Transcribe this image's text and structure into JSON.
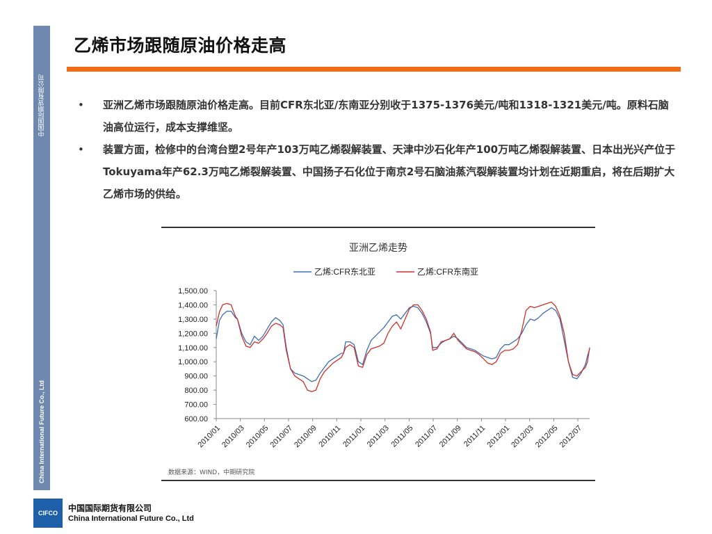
{
  "sidebar": {
    "top_text": "中国国际期货有限公司",
    "bottom_text": "China International Future Co., Ltd"
  },
  "page": {
    "title": "乙烯市场跟随原油价格走高"
  },
  "bullets": [
    {
      "marker": "•",
      "text": "亚洲乙烯市场跟随原油价格走高。目前CFR东北亚/东南亚分别收于1375-1376美元/吨和1318-1321美元/吨。原料石脑油高位运行，成本支撑维坚。"
    },
    {
      "marker": "•",
      "text": "装置方面，检修中的台湾台塑2号年产103万吨乙烯裂解装置、天津中沙石化年产100万吨乙烯裂解装置、日本出光兴产位于Tokuyama年产62.3万吨乙烯裂解装置、中国扬子石化位于南京2号石脑油蒸汽裂解装置均计划在近期重启，将在后期扩大乙烯市场的供给。"
    }
  ],
  "chart_data": {
    "type": "line",
    "title": "亚洲乙烯走势",
    "source": "数据来源：WIND，中期研究院",
    "legend_position": "top",
    "xlabel": "",
    "ylabel": "",
    "ylim": [
      600,
      1500
    ],
    "y_ticks": [
      "1,500.00",
      "1,400.00",
      "1,300.00",
      "1,200.00",
      "1,100.00",
      "1,000.00",
      "900.00",
      "800.00",
      "700.00",
      "600.00"
    ],
    "x_ticks": [
      "2010/01",
      "2010/03",
      "2010/05",
      "2010/07",
      "2010/09",
      "2010/11",
      "2011/01",
      "2011/03",
      "2011/05",
      "2011/07",
      "2011/09",
      "2011/11",
      "2012/01",
      "2012/03",
      "2012/05",
      "2012/07"
    ],
    "x_range_months": [
      0,
      15.4
    ],
    "series": [
      {
        "name": "乙烯:CFR东北亚",
        "color": "#3d6fb6",
        "points": [
          [
            0,
            1160
          ],
          [
            0.15,
            1290
          ],
          [
            0.3,
            1330
          ],
          [
            0.5,
            1355
          ],
          [
            0.7,
            1355
          ],
          [
            0.9,
            1310
          ],
          [
            1.0,
            1300
          ],
          [
            1.2,
            1200
          ],
          [
            1.4,
            1140
          ],
          [
            1.6,
            1120
          ],
          [
            1.8,
            1180
          ],
          [
            2.0,
            1150
          ],
          [
            2.2,
            1180
          ],
          [
            2.4,
            1230
          ],
          [
            2.6,
            1280
          ],
          [
            2.8,
            1310
          ],
          [
            3.0,
            1290
          ],
          [
            3.15,
            1260
          ],
          [
            3.3,
            1100
          ],
          [
            3.5,
            950
          ],
          [
            3.7,
            920
          ],
          [
            3.9,
            910
          ],
          [
            4.1,
            900
          ],
          [
            4.3,
            880
          ],
          [
            4.5,
            860
          ],
          [
            4.7,
            870
          ],
          [
            4.9,
            920
          ],
          [
            5.1,
            960
          ],
          [
            5.3,
            1000
          ],
          [
            5.5,
            1020
          ],
          [
            5.7,
            1040
          ],
          [
            5.9,
            1060
          ],
          [
            6.0,
            1060
          ],
          [
            6.1,
            1140
          ],
          [
            6.3,
            1140
          ],
          [
            6.5,
            1120
          ],
          [
            6.7,
            1000
          ],
          [
            6.9,
            980
          ],
          [
            7.1,
            1080
          ],
          [
            7.3,
            1150
          ],
          [
            7.5,
            1180
          ],
          [
            7.7,
            1210
          ],
          [
            7.9,
            1240
          ],
          [
            8.1,
            1280
          ],
          [
            8.3,
            1320
          ],
          [
            8.5,
            1330
          ],
          [
            8.7,
            1300
          ],
          [
            8.9,
            1340
          ],
          [
            9.1,
            1380
          ],
          [
            9.3,
            1390
          ],
          [
            9.5,
            1380
          ],
          [
            9.7,
            1340
          ],
          [
            9.9,
            1280
          ],
          [
            10.1,
            1200
          ],
          [
            10.2,
            1100
          ],
          [
            10.4,
            1100
          ],
          [
            10.6,
            1130
          ],
          [
            10.8,
            1150
          ],
          [
            11.0,
            1160
          ],
          [
            11.2,
            1180
          ],
          [
            11.4,
            1160
          ],
          [
            11.6,
            1130
          ],
          [
            11.8,
            1100
          ],
          [
            12.0,
            1090
          ],
          [
            12.2,
            1080
          ],
          [
            12.4,
            1060
          ],
          [
            12.6,
            1040
          ],
          [
            12.8,
            1030
          ],
          [
            13.0,
            1020
          ],
          [
            13.2,
            1030
          ],
          [
            13.4,
            1090
          ],
          [
            13.6,
            1120
          ],
          [
            13.8,
            1120
          ],
          [
            14.0,
            1140
          ],
          [
            14.2,
            1160
          ],
          [
            14.4,
            1200
          ],
          [
            14.6,
            1260
          ],
          [
            14.8,
            1300
          ],
          [
            15.0,
            1290
          ],
          [
            15.2,
            1310
          ],
          [
            15.4,
            1340
          ],
          [
            15.6,
            1360
          ],
          [
            15.8,
            1380
          ],
          [
            16.0,
            1360
          ],
          [
            16.2,
            1300
          ],
          [
            16.4,
            1150
          ],
          [
            16.6,
            1000
          ],
          [
            16.8,
            890
          ],
          [
            17.0,
            880
          ],
          [
            17.2,
            920
          ],
          [
            17.4,
            980
          ],
          [
            17.5,
            1040
          ],
          [
            17.6,
            1090
          ]
        ]
      },
      {
        "name": "乙烯:CFR东南亚",
        "color": "#d0302a",
        "points": [
          [
            0,
            1250
          ],
          [
            0.15,
            1350
          ],
          [
            0.3,
            1400
          ],
          [
            0.5,
            1410
          ],
          [
            0.7,
            1400
          ],
          [
            0.9,
            1320
          ],
          [
            1.0,
            1300
          ],
          [
            1.2,
            1180
          ],
          [
            1.4,
            1110
          ],
          [
            1.6,
            1100
          ],
          [
            1.8,
            1140
          ],
          [
            2.0,
            1130
          ],
          [
            2.2,
            1160
          ],
          [
            2.4,
            1200
          ],
          [
            2.6,
            1250
          ],
          [
            2.8,
            1270
          ],
          [
            3.0,
            1260
          ],
          [
            3.15,
            1240
          ],
          [
            3.3,
            1080
          ],
          [
            3.5,
            950
          ],
          [
            3.7,
            900
          ],
          [
            3.9,
            880
          ],
          [
            4.1,
            860
          ],
          [
            4.3,
            800
          ],
          [
            4.5,
            790
          ],
          [
            4.7,
            800
          ],
          [
            4.9,
            880
          ],
          [
            5.1,
            930
          ],
          [
            5.3,
            960
          ],
          [
            5.5,
            990
          ],
          [
            5.7,
            1010
          ],
          [
            5.9,
            1030
          ],
          [
            6.0,
            1060
          ],
          [
            6.1,
            1100
          ],
          [
            6.3,
            1120
          ],
          [
            6.5,
            1100
          ],
          [
            6.7,
            970
          ],
          [
            6.9,
            960
          ],
          [
            7.1,
            1050
          ],
          [
            7.3,
            1090
          ],
          [
            7.5,
            1100
          ],
          [
            7.7,
            1110
          ],
          [
            7.9,
            1130
          ],
          [
            8.1,
            1200
          ],
          [
            8.3,
            1250
          ],
          [
            8.5,
            1280
          ],
          [
            8.7,
            1230
          ],
          [
            8.9,
            1300
          ],
          [
            9.1,
            1370
          ],
          [
            9.3,
            1400
          ],
          [
            9.5,
            1400
          ],
          [
            9.7,
            1360
          ],
          [
            9.9,
            1300
          ],
          [
            10.1,
            1210
          ],
          [
            10.2,
            1080
          ],
          [
            10.4,
            1090
          ],
          [
            10.6,
            1140
          ],
          [
            10.8,
            1150
          ],
          [
            11.0,
            1160
          ],
          [
            11.2,
            1200
          ],
          [
            11.4,
            1150
          ],
          [
            11.6,
            1120
          ],
          [
            11.8,
            1090
          ],
          [
            12.0,
            1080
          ],
          [
            12.2,
            1070
          ],
          [
            12.4,
            1050
          ],
          [
            12.6,
            1020
          ],
          [
            12.8,
            990
          ],
          [
            13.0,
            980
          ],
          [
            13.2,
            1000
          ],
          [
            13.4,
            1060
          ],
          [
            13.6,
            1080
          ],
          [
            13.8,
            1080
          ],
          [
            14.0,
            1090
          ],
          [
            14.2,
            1120
          ],
          [
            14.4,
            1220
          ],
          [
            14.6,
            1360
          ],
          [
            14.8,
            1390
          ],
          [
            15.0,
            1380
          ],
          [
            15.2,
            1390
          ],
          [
            15.4,
            1400
          ],
          [
            15.6,
            1410
          ],
          [
            15.8,
            1420
          ],
          [
            16.0,
            1390
          ],
          [
            16.2,
            1320
          ],
          [
            16.4,
            1200
          ],
          [
            16.6,
            1000
          ],
          [
            16.8,
            910
          ],
          [
            17.0,
            900
          ],
          [
            17.2,
            930
          ],
          [
            17.4,
            960
          ],
          [
            17.5,
            1000
          ],
          [
            17.6,
            1100
          ]
        ]
      }
    ]
  },
  "footer": {
    "logo_text": "CIFCO",
    "company_cn": "中国国际期货有限公司",
    "company_en": "China International Future Co., Ltd"
  }
}
